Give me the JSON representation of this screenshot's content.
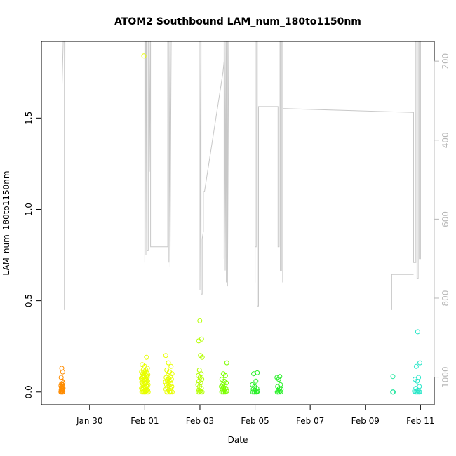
{
  "chart_data": {
    "type": "scatter",
    "title": "ATOM2 Southbound LAM_num_180to1150nm",
    "xlabel": "Date",
    "ylabel": "LAM_num_180to1150nm",
    "x_unit": "days",
    "xlim": [
      "2016-01-28 06:00",
      "2016-02-11 12:00"
    ],
    "ylim": [
      -0.07,
      1.92
    ],
    "x_ticks": [
      {
        "date": "2016-01-30",
        "label": "Jan 30"
      },
      {
        "date": "2016-02-01",
        "label": "Feb 01"
      },
      {
        "date": "2016-02-03",
        "label": "Feb 03"
      },
      {
        "date": "2016-02-05",
        "label": "Feb 05"
      },
      {
        "date": "2016-02-07",
        "label": "Feb 07"
      },
      {
        "date": "2016-02-09",
        "label": "Feb 09"
      },
      {
        "date": "2016-02-11",
        "label": "Feb 11"
      }
    ],
    "y_ticks": [
      0.0,
      0.5,
      1.0,
      1.5
    ],
    "y_tick_labels": [
      "0.0",
      "0.5",
      "1.0",
      "1.5"
    ],
    "secondary_axis": {
      "side": "right",
      "reversed": true,
      "lim": [
        150,
        1070
      ],
      "ticks": [
        200,
        400,
        600,
        800,
        1000
      ],
      "tick_labels": [
        "200",
        "400",
        "600",
        "800",
        "1000"
      ],
      "color": "#b8b8b8"
    },
    "grid": false,
    "legend": "none",
    "point_groups": [
      {
        "date": "2016-01-29 00:00",
        "color": "#ff8c00",
        "spread_hours": 2,
        "values": [
          0.0,
          0.0,
          0.0,
          0.0,
          0.005,
          0.01,
          0.01,
          0.015,
          0.02,
          0.02,
          0.025,
          0.03,
          0.03,
          0.035,
          0.04,
          0.045,
          0.05,
          0.06,
          0.08,
          0.11,
          0.13
        ]
      },
      {
        "date": "2016-02-01 00:00",
        "color": "#e8ff00",
        "spread_hours": 6,
        "values": [
          0.0,
          0.0,
          0.0,
          0.0,
          0.0,
          0.0,
          0.0,
          0.005,
          0.005,
          0.01,
          0.01,
          0.015,
          0.015,
          0.02,
          0.02,
          0.025,
          0.025,
          0.03,
          0.03,
          0.035,
          0.035,
          0.04,
          0.04,
          0.045,
          0.045,
          0.05,
          0.05,
          0.055,
          0.055,
          0.06,
          0.06,
          0.065,
          0.065,
          0.07,
          0.07,
          0.075,
          0.075,
          0.08,
          0.08,
          0.085,
          0.085,
          0.09,
          0.09,
          0.095,
          0.1,
          0.1,
          0.105,
          0.11,
          0.11,
          0.12,
          0.12,
          0.13,
          0.14,
          0.15,
          0.19,
          1.84
        ]
      },
      {
        "date": "2016-02-01 21:00",
        "color": "#e8ff00",
        "spread_hours": 6,
        "values": [
          0.0,
          0.0,
          0.0,
          0.0,
          0.0,
          0.005,
          0.01,
          0.015,
          0.02,
          0.025,
          0.03,
          0.035,
          0.04,
          0.045,
          0.05,
          0.055,
          0.06,
          0.065,
          0.07,
          0.075,
          0.08,
          0.085,
          0.09,
          0.1,
          0.11,
          0.12,
          0.14,
          0.16,
          0.2
        ]
      },
      {
        "date": "2016-02-03 00:00",
        "color": "#b4ff00",
        "spread_hours": 4,
        "values": [
          0.0,
          0.0,
          0.0,
          0.0,
          0.005,
          0.01,
          0.02,
          0.03,
          0.04,
          0.05,
          0.06,
          0.07,
          0.08,
          0.09,
          0.1,
          0.12,
          0.19,
          0.2,
          0.28,
          0.29,
          0.39
        ]
      },
      {
        "date": "2016-02-03 21:00",
        "color": "#7cff00",
        "spread_hours": 5,
        "values": [
          0.0,
          0.0,
          0.0,
          0.0,
          0.005,
          0.01,
          0.015,
          0.02,
          0.025,
          0.03,
          0.035,
          0.04,
          0.05,
          0.06,
          0.07,
          0.09,
          0.1,
          0.16
        ]
      },
      {
        "date": "2016-02-05 00:00",
        "color": "#28f028",
        "spread_hours": 5,
        "values": [
          0.0,
          0.0,
          0.0,
          0.0,
          0.0,
          0.005,
          0.01,
          0.015,
          0.02,
          0.03,
          0.04,
          0.06,
          0.1,
          0.105
        ]
      },
      {
        "date": "2016-02-05 21:00",
        "color": "#28f028",
        "spread_hours": 4,
        "values": [
          0.0,
          0.0,
          0.0,
          0.0,
          0.005,
          0.01,
          0.015,
          0.02,
          0.03,
          0.04,
          0.07,
          0.08,
          0.085
        ]
      },
      {
        "date": "2016-02-10 00:00",
        "color": "#28e6a0",
        "spread_hours": 0.8,
        "values": [
          0.0,
          0.0,
          0.0,
          0.085
        ]
      },
      {
        "date": "2016-02-10 21:00",
        "color": "#28e6c8",
        "spread_hours": 5,
        "values": [
          0.0,
          0.0,
          0.0,
          0.0,
          0.0,
          0.005,
          0.01,
          0.02,
          0.03,
          0.06,
          0.07,
          0.08,
          0.14,
          0.16,
          0.33
        ]
      }
    ],
    "secondary_series": {
      "name": "",
      "color": "#c8c8c8",
      "points": [
        [
          "2016-01-29 00:00",
          150
        ],
        [
          "2016-01-29 00:00",
          260
        ],
        [
          "2016-01-29 01:00",
          150
        ],
        [
          "2016-01-29 02:00",
          150
        ],
        [
          "2016-01-29 02:00",
          830
        ],
        [
          "2016-01-29 02:30",
          150
        ],
        [
          "2016-02-01 00:00",
          150
        ],
        [
          "2016-02-01 00:00",
          710
        ],
        [
          "2016-02-01 00:30",
          150
        ],
        [
          "2016-02-01 01:00",
          150
        ],
        [
          "2016-02-01 01:00",
          690
        ],
        [
          "2016-02-01 01:30",
          150
        ],
        [
          "2016-02-01 02:00",
          150
        ],
        [
          "2016-02-01 02:00",
          680
        ],
        [
          "2016-02-01 03:00",
          680
        ],
        [
          "2016-02-01 03:00",
          150
        ],
        [
          "2016-02-01 04:00",
          150
        ],
        [
          "2016-02-01 04:00",
          480
        ],
        [
          "2016-02-01 05:00",
          150
        ],
        [
          "2016-02-01 05:00",
          670
        ],
        [
          "2016-02-01 20:00",
          670
        ],
        [
          "2016-02-01 20:00",
          150
        ],
        [
          "2016-02-01 21:00",
          150
        ],
        [
          "2016-02-01 21:00",
          710
        ],
        [
          "2016-02-01 22:00",
          150
        ],
        [
          "2016-02-01 22:00",
          720
        ],
        [
          "2016-02-01 23:00",
          150
        ],
        [
          "2016-02-03 00:00",
          150
        ],
        [
          "2016-02-03 00:00",
          780
        ],
        [
          "2016-02-03 01:00",
          150
        ],
        [
          "2016-02-03 01:00",
          790
        ],
        [
          "2016-02-03 02:00",
          790
        ],
        [
          "2016-02-03 02:00",
          650
        ],
        [
          "2016-02-03 03:00",
          630
        ],
        [
          "2016-02-03 03:00",
          530
        ],
        [
          "2016-02-03 04:00",
          530
        ],
        [
          "2016-02-03 12:00",
          380
        ],
        [
          "2016-02-03 20:00",
          230
        ],
        [
          "2016-02-03 21:00",
          200
        ],
        [
          "2016-02-03 21:00",
          150
        ],
        [
          "2016-02-03 21:00",
          150
        ],
        [
          "2016-02-03 21:00",
          700
        ],
        [
          "2016-02-03 22:00",
          150
        ],
        [
          "2016-02-03 22:00",
          730
        ],
        [
          "2016-02-03 23:00",
          150
        ],
        [
          "2016-02-03 23:00",
          760
        ],
        [
          "2016-02-04 00:00",
          150
        ],
        [
          "2016-02-04 00:00",
          770
        ],
        [
          "2016-02-04 01:00",
          150
        ],
        [
          "2016-02-04 20:00",
          150
        ],
        [
          "2016-02-05 00:00",
          150
        ],
        [
          "2016-02-05 00:00",
          760
        ],
        [
          "2016-02-05 00:00",
          670
        ],
        [
          "2016-02-05 01:00",
          670
        ],
        [
          "2016-02-05 01:00",
          150
        ],
        [
          "2016-02-05 02:00",
          150
        ],
        [
          "2016-02-05 02:00",
          820
        ],
        [
          "2016-02-05 03:00",
          820
        ],
        [
          "2016-02-05 03:00",
          315
        ],
        [
          "2016-02-05 04:00",
          315
        ],
        [
          "2016-02-05 20:00",
          315
        ],
        [
          "2016-02-05 20:00",
          670
        ],
        [
          "2016-02-05 21:00",
          670
        ],
        [
          "2016-02-05 21:00",
          150
        ],
        [
          "2016-02-05 22:00",
          150
        ],
        [
          "2016-02-05 22:00",
          730
        ],
        [
          "2016-02-05 23:00",
          730
        ],
        [
          "2016-02-05 23:00",
          150
        ],
        [
          "2016-02-06 00:00",
          150
        ],
        [
          "2016-02-06 00:00",
          760
        ],
        [
          "2016-02-06 00:00",
          320
        ],
        [
          "2016-02-10 18:00",
          330
        ],
        [
          "2016-02-10 18:00",
          710
        ],
        [
          "2016-02-10 20:00",
          710
        ],
        [
          "2016-02-10 20:00",
          150
        ],
        [
          "2016-02-10 21:00",
          150
        ],
        [
          "2016-02-10 21:00",
          750
        ],
        [
          "2016-02-10 22:00",
          750
        ],
        [
          "2016-02-10 22:00",
          150
        ],
        [
          "2016-02-10 23:00",
          150
        ],
        [
          "2016-02-10 23:00",
          700
        ],
        [
          "2016-02-11 00:00",
          700
        ],
        [
          "2016-02-11 00:00",
          150
        ]
      ]
    },
    "secondary_extra_segments": [
      [
        [
          "2016-02-09 23:00",
          830
        ],
        [
          "2016-02-09 23:00",
          740
        ],
        [
          "2016-02-10 18:00",
          740
        ]
      ]
    ]
  }
}
